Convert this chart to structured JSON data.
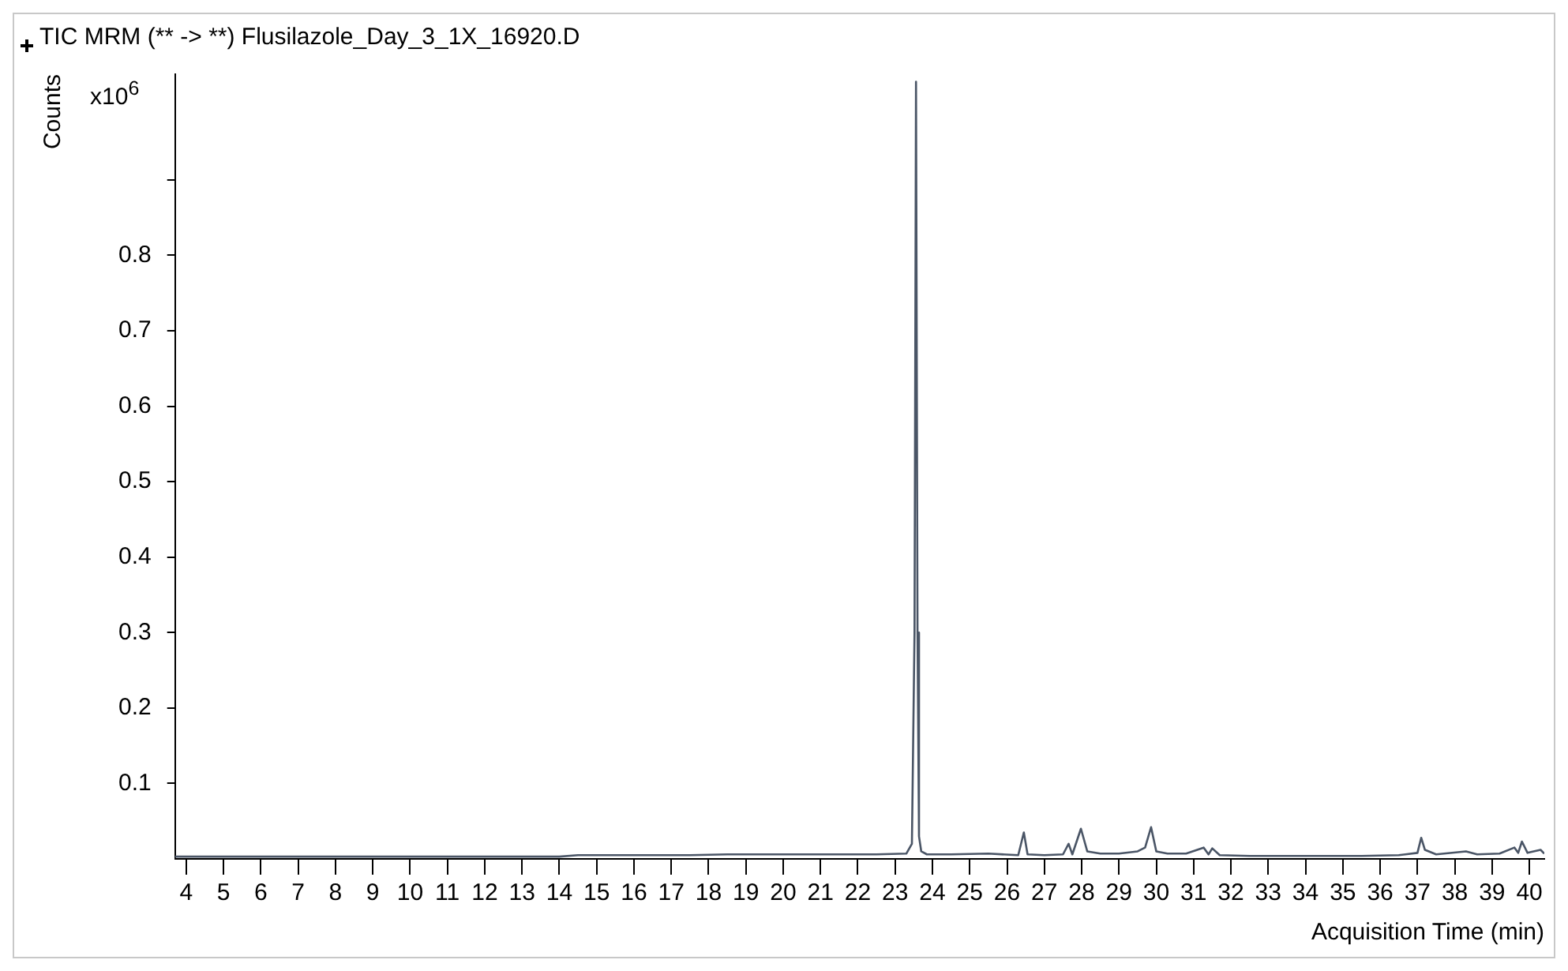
{
  "chart_data": {
    "type": "line",
    "title": "TIC MRM (** -> **) Flusilazole_Day_3_1X_16920.D",
    "xlabel": "Acquisition Time (min)",
    "ylabel": "Counts",
    "annotations": [
      "x10$^{6}$"
    ],
    "x": [
      3.7,
      5,
      7,
      9,
      11,
      13,
      14,
      14.5,
      15.5,
      16.5,
      17.5,
      18.5,
      19.5,
      20.5,
      21.5,
      22.5,
      23.3,
      23.45,
      23.52,
      23.56,
      23.6,
      23.64,
      23.7,
      23.85,
      24.5,
      25.5,
      26.3,
      26.45,
      26.55,
      27,
      27.5,
      27.65,
      27.75,
      27.98,
      28.15,
      28.5,
      29,
      29.5,
      29.7,
      29.86,
      30,
      30.3,
      30.8,
      31.27,
      31.4,
      31.5,
      31.7,
      32.5,
      34,
      35.5,
      36.5,
      37,
      37.1,
      37.2,
      37.5,
      38.3,
      38.6,
      39.2,
      39.6,
      39.7,
      39.8,
      39.95,
      40.3,
      40.4
    ],
    "series": [
      {
        "color": "#4a5566",
        "values": [
          0.003,
          0.003,
          0.003,
          0.003,
          0.003,
          0.003,
          0.003,
          0.005,
          0.005,
          0.005,
          0.005,
          0.006,
          0.006,
          0.006,
          0.006,
          0.006,
          0.007,
          0.02,
          0.3,
          1.03,
          0.3,
          0.03,
          0.01,
          0.006,
          0.006,
          0.007,
          0.005,
          0.035,
          0.006,
          0.005,
          0.006,
          0.02,
          0.006,
          0.04,
          0.01,
          0.007,
          0.007,
          0.01,
          0.015,
          0.042,
          0.01,
          0.007,
          0.007,
          0.015,
          0.006,
          0.014,
          0.005,
          0.004,
          0.004,
          0.004,
          0.005,
          0.008,
          0.028,
          0.012,
          0.006,
          0.01,
          0.006,
          0.007,
          0.015,
          0.008,
          0.023,
          0.008,
          0.012,
          0.007
        ]
      }
    ],
    "xlim": [
      3.7,
      40.4
    ],
    "xticks": [
      4,
      5,
      6,
      7,
      8,
      9,
      10,
      11,
      12,
      13,
      14,
      15,
      16,
      17,
      18,
      19,
      20,
      21,
      22,
      23,
      24,
      25,
      26,
      27,
      28,
      29,
      30,
      31,
      32,
      33,
      34,
      35,
      36,
      37,
      38,
      39,
      40
    ],
    "ylim": [
      0,
      1.04
    ],
    "yticks": [
      0.1,
      0.2,
      0.3,
      0.4,
      0.5,
      0.6,
      0.7,
      0.8,
      {
        "value": 0.9,
        "label": null
      }
    ],
    "grid": false,
    "legend": false,
    "marker": "none",
    "line_style": "solid"
  }
}
